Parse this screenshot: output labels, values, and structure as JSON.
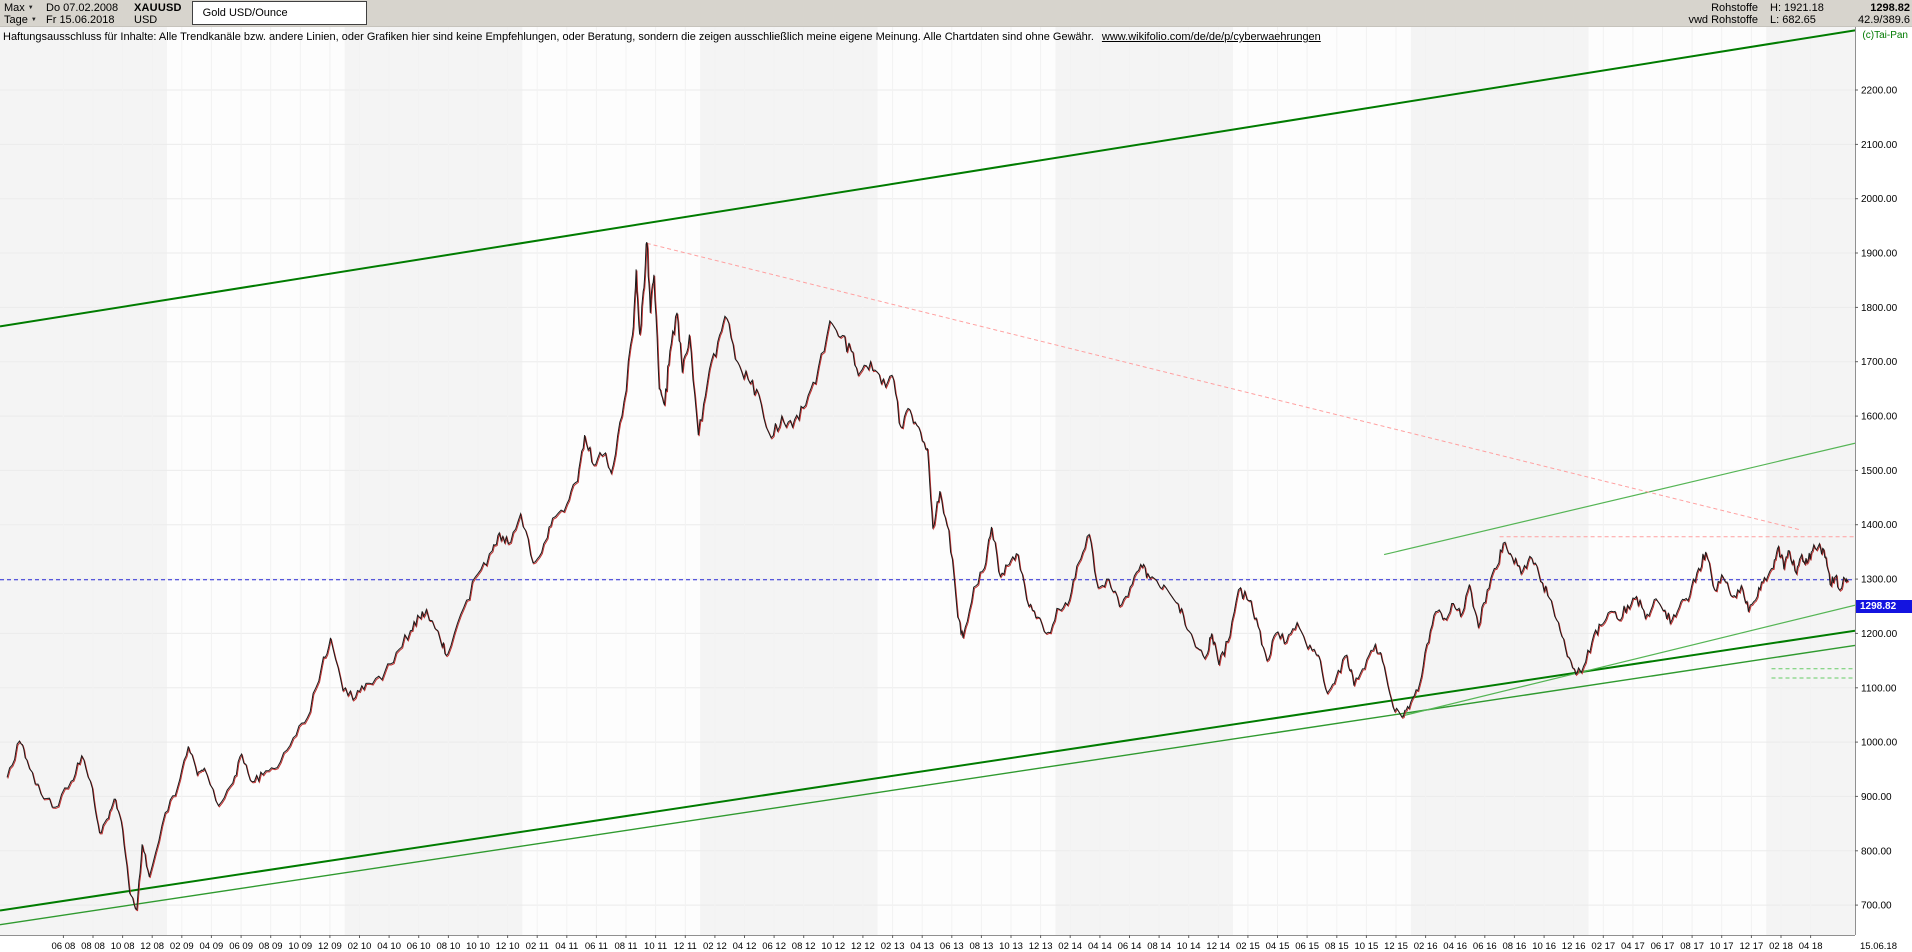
{
  "window": {
    "toolbar": {
      "range_selector": "Max",
      "timeframe": "Tage",
      "start_date": "Do 07.02.2008",
      "end_date": "Fr 15.06.2018",
      "symbol": "XAUUSD",
      "currency": "USD",
      "instrument_title": "Gold USD/Ounce",
      "quotes": {
        "source_line1": "Rohstoffe",
        "high": "H: 1921.18",
        "last": "1298.82",
        "source_line2": "vwd Rohstoffe",
        "low": "L: 682.65",
        "indicators": "42.9/389.6"
      }
    },
    "copyright": "(c)Tai-Pan",
    "disclaimer": {
      "text": "Haftungsausschluss für Inhalte: Alle Trendkanäle bzw. andere Linien, oder Grafiken hier sind keine Empfehlungen, oder Beratung, sondern die zeigen ausschließlich meine eigene Meinung. Alle Chartdaten sind ohne Gewähr.",
      "link": "www.wikifolio.com/de/de/p/cyberwaehrungen"
    }
  },
  "chart_data": {
    "type": "line",
    "title": "Gold USD/Ounce",
    "symbol": "XAUUSD",
    "timeframe": "Tage",
    "x_unit": "decimal_year",
    "xlim": [
      2008.06,
      2018.5
    ],
    "ylim": [
      645,
      2316
    ],
    "high": 1921.18,
    "low": 682.65,
    "last_price": 1298.82,
    "last_price_label": "1298.82",
    "x_axis_end_label": "15.06.18",
    "grid": true,
    "legend": "none",
    "y_ticks": [
      [
        2200,
        "2200.00"
      ],
      [
        2100,
        "2100.00"
      ],
      [
        2000,
        "2000.00"
      ],
      [
        1900,
        "1900.00"
      ],
      [
        1800,
        "1800.00"
      ],
      [
        1700,
        "1700.00"
      ],
      [
        1600,
        "1600.00"
      ],
      [
        1500,
        "1500.00"
      ],
      [
        1400,
        "1400.00"
      ],
      [
        1300,
        "1300.00"
      ],
      [
        1200,
        "1200.00"
      ],
      [
        1100,
        "1100.00"
      ],
      [
        1000,
        "1000.00"
      ],
      [
        900,
        "900.00"
      ],
      [
        800,
        "800.00"
      ],
      [
        700,
        "700.00"
      ]
    ],
    "x_ticks": [
      "06 08",
      "08 08",
      "10 08",
      "12 08",
      "02 09",
      "04 09",
      "06 09",
      "08 09",
      "10 09",
      "12 09",
      "02 10",
      "04 10",
      "06 10",
      "08 10",
      "10 10",
      "12 10",
      "02 11",
      "04 11",
      "06 11",
      "08 11",
      "10 11",
      "12 11",
      "02 12",
      "04 12",
      "06 12",
      "08 12",
      "10 12",
      "12 12",
      "02 13",
      "04 13",
      "06 13",
      "08 13",
      "10 13",
      "12 13",
      "02 14",
      "04 14",
      "06 14",
      "08 14",
      "10 14",
      "12 14",
      "02 15",
      "04 15",
      "06 15",
      "08 15",
      "10 15",
      "12 15",
      "02 16",
      "04 16",
      "06 16",
      "08 16",
      "10 16",
      "12 16",
      "02 17",
      "04 17",
      "06 17",
      "08 17",
      "10 17",
      "12 17",
      "02 18",
      "04 18"
    ],
    "style": {
      "year_bands": {
        "even": "#f4f4f4",
        "odd": "#fdfdfd"
      }
    },
    "series": [
      {
        "name": "XAUUSD Tagesschlusskurse",
        "color": "#1a1a1a",
        "shadow_color": "#c03030",
        "points": [
          [
            2008.1,
            935
          ],
          [
            2008.17,
            1002
          ],
          [
            2008.21,
            968
          ],
          [
            2008.29,
            905
          ],
          [
            2008.37,
            880
          ],
          [
            2008.46,
            928
          ],
          [
            2008.52,
            975
          ],
          [
            2008.58,
            915
          ],
          [
            2008.62,
            833
          ],
          [
            2008.67,
            860
          ],
          [
            2008.71,
            895
          ],
          [
            2008.75,
            838
          ],
          [
            2008.79,
            722
          ],
          [
            2008.83,
            692
          ],
          [
            2008.86,
            812
          ],
          [
            2008.9,
            752
          ],
          [
            2008.99,
            870
          ],
          [
            2009.06,
            918
          ],
          [
            2009.12,
            992
          ],
          [
            2009.17,
            940
          ],
          [
            2009.21,
            952
          ],
          [
            2009.29,
            883
          ],
          [
            2009.37,
            925
          ],
          [
            2009.42,
            978
          ],
          [
            2009.48,
            927
          ],
          [
            2009.54,
            940
          ],
          [
            2009.62,
            953
          ],
          [
            2009.71,
            1008
          ],
          [
            2009.79,
            1045
          ],
          [
            2009.87,
            1140
          ],
          [
            2009.92,
            1192
          ],
          [
            2009.99,
            1095
          ],
          [
            2010.06,
            1082
          ],
          [
            2010.12,
            1108
          ],
          [
            2010.21,
            1115
          ],
          [
            2010.29,
            1165
          ],
          [
            2010.37,
            1205
          ],
          [
            2010.42,
            1230
          ],
          [
            2010.46,
            1244
          ],
          [
            2010.54,
            1185
          ],
          [
            2010.58,
            1162
          ],
          [
            2010.67,
            1248
          ],
          [
            2010.75,
            1310
          ],
          [
            2010.83,
            1352
          ],
          [
            2010.87,
            1385
          ],
          [
            2010.92,
            1365
          ],
          [
            2010.99,
            1420
          ],
          [
            2011.06,
            1330
          ],
          [
            2011.12,
            1365
          ],
          [
            2011.17,
            1412
          ],
          [
            2011.25,
            1438
          ],
          [
            2011.31,
            1480
          ],
          [
            2011.35,
            1565
          ],
          [
            2011.4,
            1510
          ],
          [
            2011.46,
            1530
          ],
          [
            2011.5,
            1495
          ],
          [
            2011.56,
            1600
          ],
          [
            2011.62,
            1750
          ],
          [
            2011.64,
            1870
          ],
          [
            2011.66,
            1750
          ],
          [
            2011.68,
            1830
          ],
          [
            2011.7,
            1920
          ],
          [
            2011.72,
            1790
          ],
          [
            2011.74,
            1860
          ],
          [
            2011.77,
            1650
          ],
          [
            2011.8,
            1620
          ],
          [
            2011.83,
            1720
          ],
          [
            2011.87,
            1790
          ],
          [
            2011.9,
            1680
          ],
          [
            2011.94,
            1750
          ],
          [
            2011.99,
            1565
          ],
          [
            2012.04,
            1660
          ],
          [
            2012.1,
            1737
          ],
          [
            2012.15,
            1780
          ],
          [
            2012.21,
            1700
          ],
          [
            2012.27,
            1668
          ],
          [
            2012.33,
            1640
          ],
          [
            2012.4,
            1560
          ],
          [
            2012.46,
            1600
          ],
          [
            2012.52,
            1580
          ],
          [
            2012.58,
            1615
          ],
          [
            2012.65,
            1660
          ],
          [
            2012.73,
            1775
          ],
          [
            2012.79,
            1745
          ],
          [
            2012.85,
            1720
          ],
          [
            2012.9,
            1680
          ],
          [
            2012.96,
            1700
          ],
          [
            2013.02,
            1660
          ],
          [
            2013.08,
            1675
          ],
          [
            2013.13,
            1580
          ],
          [
            2013.18,
            1612
          ],
          [
            2013.23,
            1580
          ],
          [
            2013.28,
            1540
          ],
          [
            2013.31,
            1395
          ],
          [
            2013.35,
            1462
          ],
          [
            2013.4,
            1390
          ],
          [
            2013.45,
            1230
          ],
          [
            2013.48,
            1192
          ],
          [
            2013.54,
            1285
          ],
          [
            2013.6,
            1320
          ],
          [
            2013.64,
            1396
          ],
          [
            2013.69,
            1305
          ],
          [
            2013.74,
            1327
          ],
          [
            2013.79,
            1345
          ],
          [
            2013.85,
            1250
          ],
          [
            2013.9,
            1230
          ],
          [
            2013.96,
            1202
          ],
          [
            2014.02,
            1245
          ],
          [
            2014.08,
            1262
          ],
          [
            2014.13,
            1330
          ],
          [
            2014.19,
            1382
          ],
          [
            2014.24,
            1284
          ],
          [
            2014.3,
            1300
          ],
          [
            2014.36,
            1250
          ],
          [
            2014.42,
            1285
          ],
          [
            2014.48,
            1327
          ],
          [
            2014.52,
            1310
          ],
          [
            2014.58,
            1290
          ],
          [
            2014.63,
            1280
          ],
          [
            2014.69,
            1255
          ],
          [
            2014.74,
            1208
          ],
          [
            2014.8,
            1173
          ],
          [
            2014.85,
            1160
          ],
          [
            2014.88,
            1200
          ],
          [
            2014.92,
            1142
          ],
          [
            2014.97,
            1185
          ],
          [
            2015.03,
            1280
          ],
          [
            2015.09,
            1260
          ],
          [
            2015.14,
            1213
          ],
          [
            2015.19,
            1150
          ],
          [
            2015.24,
            1200
          ],
          [
            2015.3,
            1184
          ],
          [
            2015.36,
            1220
          ],
          [
            2015.42,
            1172
          ],
          [
            2015.48,
            1160
          ],
          [
            2015.53,
            1090
          ],
          [
            2015.58,
            1120
          ],
          [
            2015.64,
            1160
          ],
          [
            2015.68,
            1104
          ],
          [
            2015.74,
            1135
          ],
          [
            2015.8,
            1180
          ],
          [
            2015.85,
            1140
          ],
          [
            2015.9,
            1065
          ],
          [
            2015.95,
            1046
          ],
          [
            2015.99,
            1062
          ],
          [
            2016.04,
            1095
          ],
          [
            2016.09,
            1180
          ],
          [
            2016.14,
            1240
          ],
          [
            2016.19,
            1228
          ],
          [
            2016.24,
            1255
          ],
          [
            2016.28,
            1232
          ],
          [
            2016.33,
            1290
          ],
          [
            2016.38,
            1212
          ],
          [
            2016.43,
            1280
          ],
          [
            2016.48,
            1320
          ],
          [
            2016.52,
            1366
          ],
          [
            2016.57,
            1340
          ],
          [
            2016.62,
            1310
          ],
          [
            2016.67,
            1342
          ],
          [
            2016.72,
            1310
          ],
          [
            2016.77,
            1270
          ],
          [
            2016.82,
            1225
          ],
          [
            2016.87,
            1173
          ],
          [
            2016.92,
            1135
          ],
          [
            2016.96,
            1128
          ],
          [
            2017.02,
            1185
          ],
          [
            2017.07,
            1215
          ],
          [
            2017.12,
            1240
          ],
          [
            2017.17,
            1225
          ],
          [
            2017.22,
            1252
          ],
          [
            2017.27,
            1268
          ],
          [
            2017.32,
            1228
          ],
          [
            2017.37,
            1262
          ],
          [
            2017.42,
            1242
          ],
          [
            2017.47,
            1225
          ],
          [
            2017.52,
            1258
          ],
          [
            2017.57,
            1270
          ],
          [
            2017.62,
            1320
          ],
          [
            2017.66,
            1350
          ],
          [
            2017.71,
            1280
          ],
          [
            2017.76,
            1302
          ],
          [
            2017.81,
            1268
          ],
          [
            2017.86,
            1288
          ],
          [
            2017.9,
            1240
          ],
          [
            2017.95,
            1268
          ],
          [
            2017.99,
            1303
          ],
          [
            2018.04,
            1320
          ],
          [
            2018.07,
            1360
          ],
          [
            2018.1,
            1318
          ],
          [
            2018.13,
            1352
          ],
          [
            2018.17,
            1310
          ],
          [
            2018.2,
            1345
          ],
          [
            2018.23,
            1330
          ],
          [
            2018.26,
            1352
          ],
          [
            2018.3,
            1365
          ],
          [
            2018.33,
            1340
          ],
          [
            2018.36,
            1290
          ],
          [
            2018.39,
            1305
          ],
          [
            2018.42,
            1282
          ],
          [
            2018.44,
            1302
          ],
          [
            2018.46,
            1298.82
          ]
        ]
      }
    ],
    "annotations": {
      "channel_lines": [
        {
          "name": "upper-channel-line",
          "color": "#007c00",
          "width": 2,
          "from": [
            2008.06,
            1765
          ],
          "to": [
            2018.5,
            2310
          ]
        },
        {
          "name": "lower-channel-line-1",
          "color": "#007c00",
          "width": 2,
          "from": [
            2008.06,
            690
          ],
          "to": [
            2018.5,
            1205
          ]
        },
        {
          "name": "lower-channel-line-2",
          "color": "#2f9a2f",
          "width": 1.4,
          "from": [
            2008.06,
            664
          ],
          "to": [
            2018.5,
            1178
          ]
        },
        {
          "name": "right-resistance-line",
          "color": "#55b555",
          "width": 1.2,
          "from": [
            2015.85,
            1345
          ],
          "to": [
            2018.5,
            1550
          ]
        },
        {
          "name": "right-support-line",
          "color": "#55b555",
          "width": 1.2,
          "from": [
            2015.95,
            1048
          ],
          "to": [
            2018.5,
            1252
          ]
        }
      ],
      "dashed_lines": [
        {
          "name": "downtrend-from-ath",
          "color": "#ffa0a0",
          "width": 1,
          "dash": "4 3",
          "from": [
            2011.7,
            1918
          ],
          "to": [
            2018.2,
            1390
          ]
        },
        {
          "name": "horizontal-resistance",
          "color": "#ffa0a0",
          "width": 1,
          "dash": "4 3",
          "from": [
            2016.5,
            1378
          ],
          "to": [
            2018.5,
            1378
          ]
        },
        {
          "name": "current-price-line",
          "color": "#2828d8",
          "width": 1,
          "dash": "4 3",
          "from": [
            2008.06,
            1298.82
          ],
          "to": [
            2018.5,
            1298.82
          ]
        },
        {
          "name": "support-marker-1",
          "color": "#66cc66",
          "width": 1,
          "dash": "4 3",
          "from": [
            2018.03,
            1135
          ],
          "to": [
            2018.5,
            1135
          ]
        },
        {
          "name": "support-marker-2",
          "color": "#66cc66",
          "width": 1,
          "dash": "4 3",
          "from": [
            2018.03,
            1118
          ],
          "to": [
            2018.5,
            1118
          ]
        }
      ]
    }
  }
}
